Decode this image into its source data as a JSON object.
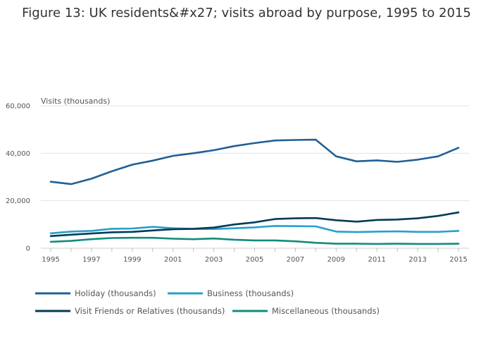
{
  "chart_data": {
    "type": "line",
    "title": "Figure 13: UK residents&#x27; visits abroad by purpose, 1995 to 2015",
    "xlabel": "",
    "ylabel": "Visits (thousands)",
    "ylim": [
      0,
      60000
    ],
    "yticks": [
      0,
      20000,
      40000,
      60000
    ],
    "ytick_labels": [
      "0",
      "20,000",
      "40,000",
      "60,000"
    ],
    "x": [
      1995,
      1996,
      1997,
      1998,
      1999,
      2000,
      2001,
      2002,
      2003,
      2004,
      2005,
      2006,
      2007,
      2008,
      2009,
      2010,
      2011,
      2012,
      2013,
      2014,
      2015
    ],
    "xticks": [
      1995,
      1997,
      1999,
      2001,
      2003,
      2005,
      2007,
      2009,
      2011,
      2013,
      2015
    ],
    "xtick_labels": [
      "1995",
      "1997",
      "1999",
      "2001",
      "2003",
      "2005",
      "2007",
      "2009",
      "2011",
      "2013",
      "2015"
    ],
    "grid": true,
    "legend_position": "bottom",
    "series": [
      {
        "name": "Holiday (thousands)",
        "color": "#206095",
        "values": [
          28000,
          27000,
          29300,
          32400,
          35200,
          36900,
          38900,
          40000,
          41300,
          43000,
          44300,
          45400,
          45600,
          45700,
          38700,
          36600,
          37000,
          36400,
          37300,
          38700,
          42300
        ]
      },
      {
        "name": "Business (thousands)",
        "color": "#27a0cc",
        "values": [
          6300,
          7000,
          7300,
          8200,
          8300,
          9000,
          8400,
          8100,
          8100,
          8400,
          8800,
          9400,
          9300,
          9200,
          7000,
          6800,
          7000,
          7100,
          6900,
          6900,
          7300
        ]
      },
      {
        "name": "Visit Friends or Relatives (thousands)",
        "color": "#003c57",
        "values": [
          5100,
          5700,
          6200,
          6700,
          6900,
          7500,
          8000,
          8200,
          8700,
          10000,
          10900,
          12300,
          12600,
          12700,
          11800,
          11200,
          11900,
          12100,
          12600,
          13600,
          15100
        ]
      },
      {
        "name": "Miscellaneous (thousands)",
        "color": "#118c7b",
        "values": [
          2700,
          3100,
          3800,
          4300,
          4400,
          4400,
          4000,
          3800,
          4100,
          3600,
          3300,
          3300,
          2900,
          2300,
          1900,
          1900,
          1800,
          1900,
          1800,
          1800,
          1900
        ]
      }
    ]
  }
}
